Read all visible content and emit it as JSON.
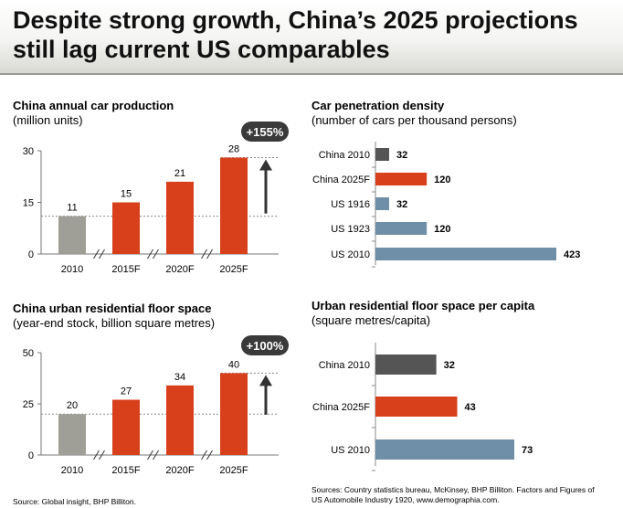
{
  "header": {
    "title_line1": "Despite strong growth, China’s 2025 projections",
    "title_line2": "still lag current US comparables"
  },
  "colors": {
    "gray": "#a09f97",
    "orange": "#d8401c",
    "steel": "#6f8ea8",
    "dark": "#555555",
    "badge": "#3a3a3a"
  },
  "charts": {
    "car_production": {
      "title": "China annual car production",
      "subtitle": "(million units)",
      "badge": "+155%"
    },
    "floor_space": {
      "title": "China urban residential floor space",
      "subtitle": "(year-end stock, billion square metres)",
      "badge": "+100%"
    },
    "car_density": {
      "title": "Car penetration density",
      "subtitle": "(number of cars per thousand persons)"
    },
    "floor_per_capita": {
      "title": "Urban residential floor space per capita",
      "subtitle": "(square metres/capita)"
    }
  },
  "sources": {
    "left": "Source: Global insight, BHP Billiton.",
    "right_line1": "Sources: Country statistics bureau, McKinsey, BHP Billiton. Factors and Figures of",
    "right_line2": "US Automobile Industry 1920, www.demographia.com."
  },
  "chart_data": [
    {
      "type": "bar",
      "title": "China annual car production",
      "subtitle": "(million units)",
      "categories": [
        "2010",
        "2015F",
        "2020F",
        "2025F"
      ],
      "values": [
        11,
        15,
        21,
        28
      ],
      "ylim": [
        0,
        30
      ],
      "yticks": [
        "0",
        "15",
        "30"
      ],
      "colors": [
        "gray",
        "orange",
        "orange",
        "orange"
      ],
      "annotation": "+155%"
    },
    {
      "type": "bar",
      "title": "China urban residential floor space",
      "subtitle": "(year-end stock, billion square metres)",
      "categories": [
        "2010",
        "2015F",
        "2020F",
        "2025F"
      ],
      "values": [
        20,
        27,
        34,
        40
      ],
      "ylim": [
        0,
        50
      ],
      "yticks": [
        "0",
        "25",
        "50"
      ],
      "colors": [
        "gray",
        "orange",
        "orange",
        "orange"
      ],
      "annotation": "+100%"
    },
    {
      "type": "bar",
      "orientation": "horizontal",
      "title": "Car penetration density",
      "subtitle": "(number of cars per thousand persons)",
      "categories": [
        "China 2010",
        "China 2025F",
        "US 1916",
        "US 1923",
        "US 2010"
      ],
      "values": [
        32,
        120,
        32,
        120,
        423
      ],
      "colors": [
        "dark",
        "orange",
        "steel",
        "steel",
        "steel"
      ]
    },
    {
      "type": "bar",
      "orientation": "horizontal",
      "title": "Urban residential floor space per capita",
      "subtitle": "(square metres/capita)",
      "categories": [
        "China 2010",
        "China 2025F",
        "US 2010"
      ],
      "values": [
        32,
        43,
        73
      ],
      "colors": [
        "dark",
        "orange",
        "steel"
      ]
    }
  ]
}
